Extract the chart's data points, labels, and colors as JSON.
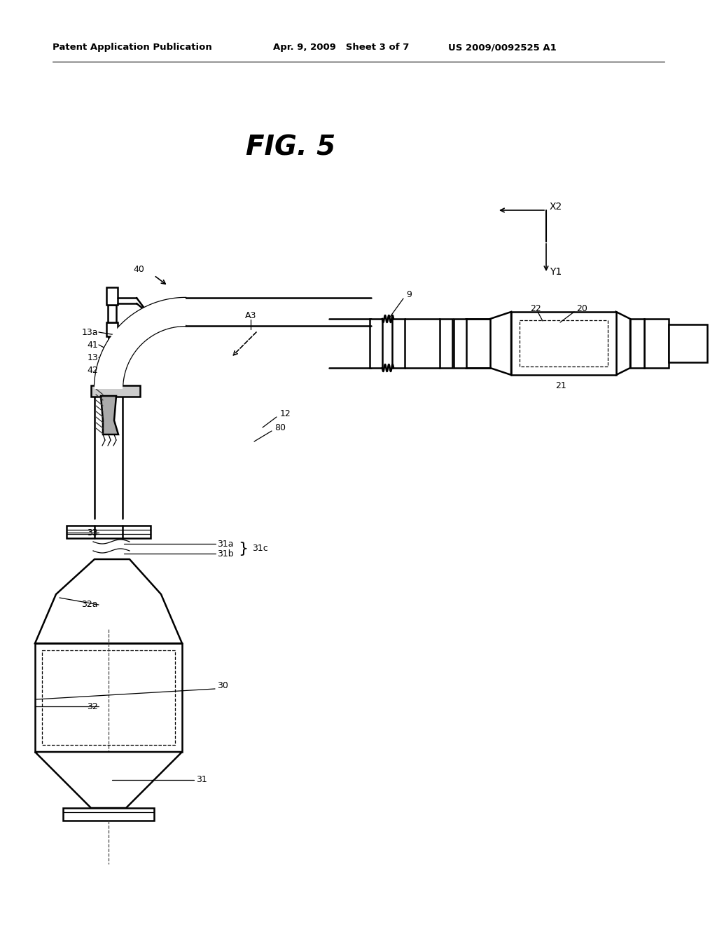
{
  "header_left": "Patent Application Publication",
  "header_mid": "Apr. 9, 2009   Sheet 3 of 7",
  "header_right": "US 2009/0092525 A1",
  "fig_title": "FIG. 5",
  "bg_color": "#ffffff",
  "line_color": "#000000"
}
